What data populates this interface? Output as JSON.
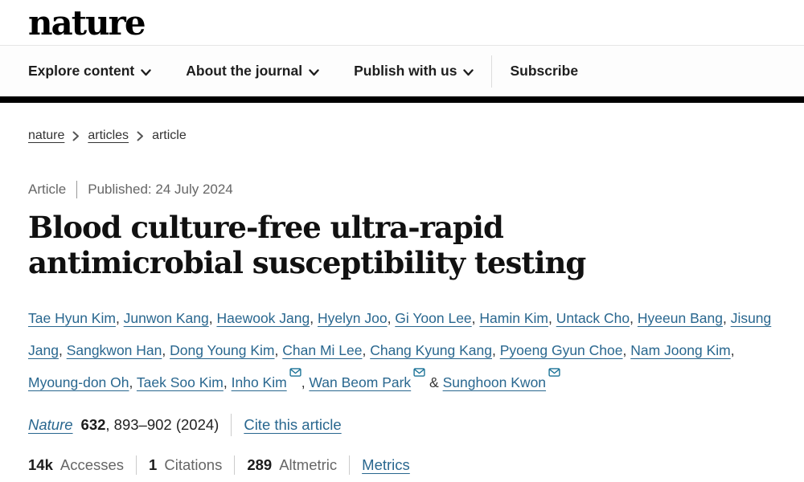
{
  "header": {
    "logo": "nature",
    "nav_items": [
      {
        "label": "Explore content",
        "has_dropdown": true
      },
      {
        "label": "About the journal",
        "has_dropdown": true
      },
      {
        "label": "Publish with us",
        "has_dropdown": true
      }
    ],
    "subscribe_label": "Subscribe"
  },
  "breadcrumb": {
    "items": [
      {
        "label": "nature",
        "link": true
      },
      {
        "label": "articles",
        "link": true
      },
      {
        "label": "article",
        "link": false
      }
    ]
  },
  "article": {
    "type_label": "Article",
    "published_label": "Published:",
    "published_date": "24 July 2024",
    "title": "Blood culture-free ultra-rapid antimicrobial susceptibility testing",
    "authors": [
      {
        "name": "Tae Hyun Kim",
        "email": false
      },
      {
        "name": "Junwon Kang",
        "email": false
      },
      {
        "name": "Haewook Jang",
        "email": false
      },
      {
        "name": "Hyelyn Joo",
        "email": false
      },
      {
        "name": "Gi Yoon Lee",
        "email": false
      },
      {
        "name": "Hamin Kim",
        "email": false
      },
      {
        "name": "Untack Cho",
        "email": false
      },
      {
        "name": "Hyeeun Bang",
        "email": false
      },
      {
        "name": "Jisung Jang",
        "email": false
      },
      {
        "name": "Sangkwon Han",
        "email": false
      },
      {
        "name": "Dong Young Kim",
        "email": false
      },
      {
        "name": "Chan Mi Lee",
        "email": false
      },
      {
        "name": "Chang Kyung Kang",
        "email": false
      },
      {
        "name": "Pyoeng Gyun Choe",
        "email": false
      },
      {
        "name": "Nam Joong Kim",
        "email": false
      },
      {
        "name": "Myoung-don Oh",
        "email": false
      },
      {
        "name": "Taek Soo Kim",
        "email": false
      },
      {
        "name": "Inho Kim",
        "email": true
      },
      {
        "name": "Wan Beom Park",
        "email": true
      },
      {
        "name": "Sunghoon Kwon",
        "email": true
      }
    ],
    "citation": {
      "journal": "Nature",
      "volume": "632",
      "pages_suffix": ", 893–902 (2024)",
      "cite_link_label": "Cite this article"
    }
  },
  "metrics": {
    "items": [
      {
        "value": "14k",
        "label": "Accesses"
      },
      {
        "value": "1",
        "label": "Citations"
      },
      {
        "value": "289",
        "label": "Altmetric"
      }
    ],
    "link_label": "Metrics"
  },
  "icons": {
    "nav_chevron": "chevron-down",
    "breadcrumb_separator": "chevron-right",
    "author_email": "envelope"
  },
  "colors": {
    "link_blue": "#29678f",
    "brand_black": "#000000",
    "muted_gray": "#666666",
    "divider_gray": "#cccccc"
  }
}
